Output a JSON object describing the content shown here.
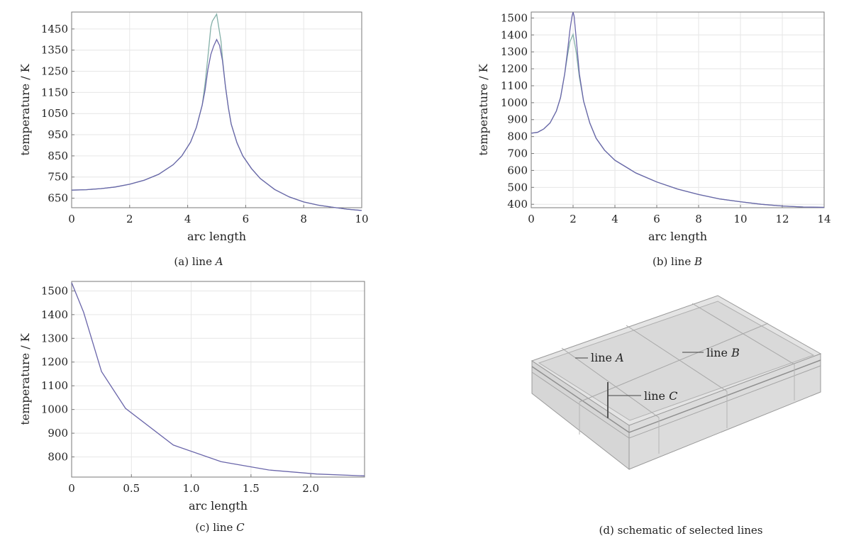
{
  "chart_data": [
    {
      "id": "a",
      "type": "line",
      "caption_prefix": "(a) line ",
      "caption_italic": "A",
      "xlabel": "arc length",
      "ylabel": "temperature / K",
      "xlim": [
        0,
        10
      ],
      "ylim": [
        605,
        1530
      ],
      "xticks": [
        "0",
        "2",
        "4",
        "6",
        "8",
        "10"
      ],
      "yticks": [
        "650",
        "750",
        "850",
        "950",
        "1050",
        "1150",
        "1250",
        "1350",
        "1450"
      ],
      "grid": true,
      "series": [
        {
          "color": "#84b0a8",
          "x": [
            0,
            0.5,
            1,
            1.5,
            2,
            2.5,
            3,
            3.5,
            3.8,
            4.1,
            4.3,
            4.5,
            4.6,
            4.7,
            4.8,
            4.85,
            5.0,
            5.15,
            5.2,
            5.3,
            5.4,
            5.5,
            5.7,
            5.9,
            6.2,
            6.5,
            7,
            7.5,
            8,
            8.5,
            9,
            9.5,
            10
          ],
          "y": [
            688,
            690,
            695,
            703,
            716,
            735,
            763,
            808,
            850,
            915,
            985,
            1090,
            1190,
            1320,
            1460,
            1487,
            1520,
            1392,
            1310,
            1180,
            1080,
            1000,
            912,
            850,
            790,
            743,
            691,
            656,
            632,
            617,
            607,
            598,
            592
          ]
        },
        {
          "color": "#6a66aa",
          "x": [
            0,
            0.5,
            1,
            1.5,
            2,
            2.5,
            3,
            3.5,
            3.8,
            4.1,
            4.3,
            4.5,
            4.6,
            4.7,
            4.8,
            4.9,
            5.0,
            5.1,
            5.2,
            5.3,
            5.4,
            5.5,
            5.7,
            5.9,
            6.2,
            6.5,
            7,
            7.5,
            8,
            8.5,
            9,
            9.5,
            10
          ],
          "y": [
            688,
            690,
            695,
            703,
            716,
            735,
            763,
            808,
            850,
            915,
            985,
            1090,
            1160,
            1260,
            1330,
            1370,
            1400,
            1372,
            1300,
            1180,
            1080,
            1000,
            912,
            850,
            790,
            743,
            691,
            656,
            632,
            617,
            607,
            598,
            592
          ]
        }
      ]
    },
    {
      "id": "b",
      "type": "line",
      "caption_prefix": "(b) line ",
      "caption_italic": "B",
      "xlabel": "arc length",
      "ylabel": "temperature / K",
      "xlim": [
        0,
        14
      ],
      "ylim": [
        380,
        1535
      ],
      "xticks": [
        "0",
        "2",
        "4",
        "6",
        "8",
        "10",
        "12",
        "14"
      ],
      "yticks": [
        "400",
        "500",
        "600",
        "700",
        "800",
        "900",
        "1000",
        "1100",
        "1200",
        "1300",
        "1400",
        "1500"
      ],
      "grid": true,
      "series": [
        {
          "color": "#84b0a8",
          "x": [
            0,
            0.3,
            0.6,
            0.9,
            1.2,
            1.4,
            1.6,
            1.75,
            1.85,
            2.0,
            2.15,
            2.3,
            2.5,
            2.8,
            3.1,
            3.5,
            4,
            5,
            6,
            7,
            8,
            9,
            10,
            11,
            12,
            13,
            14
          ],
          "y": [
            820,
            825,
            845,
            880,
            950,
            1030,
            1170,
            1290,
            1360,
            1403,
            1300,
            1150,
            1010,
            880,
            790,
            720,
            660,
            585,
            532,
            490,
            458,
            432,
            415,
            400,
            390,
            384,
            382
          ]
        },
        {
          "color": "#6a66aa",
          "x": [
            0,
            0.3,
            0.6,
            0.9,
            1.2,
            1.4,
            1.6,
            1.75,
            1.85,
            1.95,
            2.0,
            2.05,
            2.15,
            2.3,
            2.5,
            2.8,
            3.1,
            3.5,
            4,
            5,
            6,
            7,
            8,
            9,
            10,
            11,
            12,
            13,
            14
          ],
          "y": [
            820,
            825,
            845,
            880,
            950,
            1030,
            1170,
            1320,
            1430,
            1510,
            1535,
            1510,
            1380,
            1170,
            1010,
            880,
            790,
            720,
            660,
            585,
            532,
            490,
            458,
            432,
            415,
            400,
            390,
            384,
            382
          ]
        }
      ]
    },
    {
      "id": "c",
      "type": "line",
      "caption_prefix": "(c) line ",
      "caption_italic": "C",
      "xlabel": "arc length",
      "ylabel": "temperature / K",
      "xlim": [
        0,
        2.45
      ],
      "ylim": [
        715,
        1540
      ],
      "xticks": [
        "0",
        "0.5",
        "1.0",
        "1.5",
        "2.0"
      ],
      "yticks": [
        "800",
        "900",
        "1000",
        "1100",
        "1200",
        "1300",
        "1400",
        "1500"
      ],
      "grid": true,
      "series": [
        {
          "color": "#6a66aa",
          "x": [
            0,
            0.1,
            0.25,
            0.45,
            0.85,
            1.25,
            1.65,
            2.05,
            2.45
          ],
          "y": [
            1535,
            1410,
            1160,
            1005,
            850,
            780,
            745,
            728,
            720
          ]
        }
      ]
    }
  ],
  "schematic": {
    "caption": "(d) schematic of selected lines",
    "label_prefix": "line ",
    "labels": [
      "A",
      "B",
      "C"
    ]
  }
}
